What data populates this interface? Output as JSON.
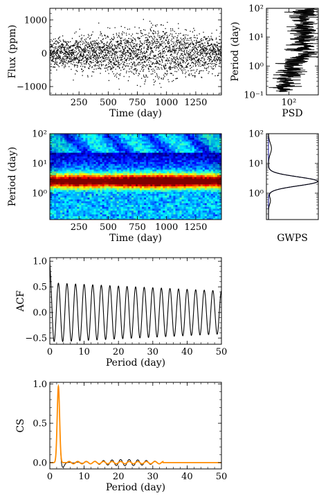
{
  "chart_data": [
    {
      "id": "flux",
      "type": "scatter",
      "xlabel": "Time (day)",
      "ylabel": "Flux (ppm)",
      "xlim": [
        0,
        1470
      ],
      "ylim": [
        -1250,
        1350
      ],
      "xticks": [
        250,
        500,
        750,
        1000,
        1250
      ],
      "xticklabels": [
        "250",
        "500",
        "750",
        "1000",
        "1250"
      ],
      "yticks": [
        -1000,
        0,
        1000
      ],
      "yticklabels": [
        "−1000",
        "0",
        "1000"
      ],
      "n_points": 2600,
      "envelope": [
        {
          "t": 0,
          "amp": 380
        },
        {
          "t": 200,
          "amp": 430
        },
        {
          "t": 400,
          "amp": 520
        },
        {
          "t": 600,
          "amp": 560
        },
        {
          "t": 800,
          "amp": 720
        },
        {
          "t": 950,
          "amp": 800
        },
        {
          "t": 1100,
          "amp": 650
        },
        {
          "t": 1300,
          "amp": 520
        },
        {
          "t": 1470,
          "amp": 430
        }
      ]
    },
    {
      "id": "psd",
      "type": "line",
      "orientation": "horizontal",
      "xlabel": "PSD",
      "ylabel": "Period (day)",
      "xscale": "log",
      "yscale": "log",
      "xlim": [
        3,
        10000
      ],
      "ylim": [
        0.1,
        100
      ],
      "xticks": [
        100
      ],
      "xticklabels": [
        "10²"
      ],
      "yticks": [
        0.1,
        1,
        10,
        100
      ],
      "yticklabels": [
        "10⁻¹",
        "10⁰",
        "10¹",
        "10²"
      ],
      "trend": [
        {
          "period": 0.15,
          "psd": 30
        },
        {
          "period": 0.3,
          "psd": 60
        },
        {
          "period": 1,
          "psd": 200
        },
        {
          "period": 3,
          "psd": 600
        },
        {
          "period": 10,
          "psd": 800
        },
        {
          "period": 30,
          "psd": 1000
        },
        {
          "period": 90,
          "psd": 1500
        }
      ]
    },
    {
      "id": "wps",
      "type": "heatmap",
      "xlabel": "Time (day)",
      "ylabel": "Period (day)",
      "xlim": [
        0,
        1470
      ],
      "ylim": [
        0.13,
        100
      ],
      "yscale": "log",
      "xticks": [
        250,
        500,
        750,
        1000,
        1250
      ],
      "xticklabels": [
        "250",
        "500",
        "750",
        "1000",
        "1250"
      ],
      "yticks": [
        1,
        10,
        100
      ],
      "yticklabels": [
        "10⁰",
        "10¹",
        "10²"
      ],
      "colormap": "jet",
      "band_period": 2.6,
      "band_strength": [
        {
          "t": 0,
          "v": 0.7
        },
        {
          "t": 250,
          "v": 0.85
        },
        {
          "t": 500,
          "v": 0.75
        },
        {
          "t": 700,
          "v": 0.9
        },
        {
          "t": 850,
          "v": 0.95
        },
        {
          "t": 1000,
          "v": 0.92
        },
        {
          "t": 1200,
          "v": 0.85
        },
        {
          "t": 1470,
          "v": 0.75
        }
      ]
    },
    {
      "id": "gwps",
      "type": "line",
      "orientation": "horizontal",
      "xlabel": "GWPS",
      "ylabel": "",
      "yscale": "log",
      "ylim": [
        0.13,
        100
      ],
      "yticks": [
        1,
        10,
        100
      ],
      "yticklabels": [
        "10⁰",
        "10¹",
        "10²"
      ],
      "series": [
        {
          "color": "#1a1aa0",
          "peak_period": 2.5,
          "width_decades": 0.15,
          "amplitude": 1.0
        },
        {
          "color": "#000000",
          "peak_period": 2.5,
          "width_decades": 0.15,
          "amplitude": 1.0
        }
      ]
    },
    {
      "id": "acf",
      "type": "line",
      "xlabel": "Period (day)",
      "ylabel": "ACF",
      "xlim": [
        0,
        50
      ],
      "ylim": [
        -0.62,
        1.07
      ],
      "xticks": [
        0,
        10,
        20,
        30,
        40,
        50
      ],
      "xticklabels": [
        "0",
        "10",
        "20",
        "30",
        "40",
        "50"
      ],
      "yticks": [
        -0.5,
        0.0,
        0.5,
        1.0
      ],
      "yticklabels": [
        "−0.5",
        "0.0",
        "0.5",
        "1.0"
      ],
      "period": 2.5,
      "amplitude_start": 0.58,
      "amplitude_end": 0.42,
      "offset": 0.0
    },
    {
      "id": "cs",
      "type": "line",
      "xlabel": "Period (day)",
      "ylabel": "CS",
      "xlim": [
        0,
        50
      ],
      "ylim": [
        -0.08,
        1.02
      ],
      "xticks": [
        0,
        10,
        20,
        30,
        40,
        50
      ],
      "xticklabels": [
        "0",
        "10",
        "20",
        "30",
        "40",
        "50"
      ],
      "yticks": [
        0.0,
        0.5,
        1.0
      ],
      "yticklabels": [
        "0.0",
        "0.5",
        "1.0"
      ],
      "series": [
        {
          "color": "#000000",
          "peak_x": 2.5,
          "peak_y": 0.97
        },
        {
          "color": "#ff8c00",
          "peak_x": 2.5,
          "peak_y": 0.97
        }
      ]
    }
  ]
}
